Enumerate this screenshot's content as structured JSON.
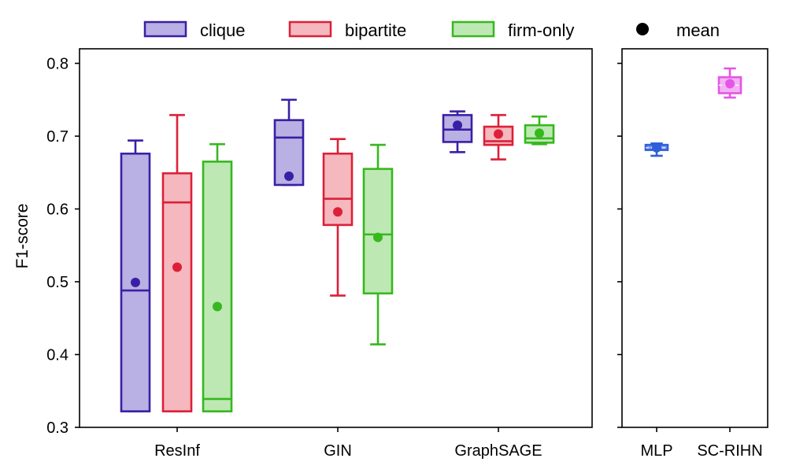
{
  "chart_data": {
    "type": "box",
    "ylabel": "F1-score",
    "ylim": [
      0.3,
      0.82
    ],
    "yticks": [
      0.3,
      0.4,
      0.5,
      0.6,
      0.7,
      0.8
    ],
    "ytick_labels": [
      "0.3",
      "0.4",
      "0.5",
      "0.6",
      "0.7",
      "0.8"
    ],
    "legend": {
      "placement": "top",
      "entries": [
        {
          "label": "clique",
          "stroke": "#3a1fa6",
          "fill": "#b9b0e3"
        },
        {
          "label": "bipartite",
          "stroke": "#dc2038",
          "fill": "#f4b8be"
        },
        {
          "label": "firm-only",
          "stroke": "#36b81e",
          "fill": "#bde8b3"
        },
        {
          "label": "mean",
          "marker": "dot",
          "color": "#000000"
        }
      ]
    },
    "panels": [
      {
        "name": "graph-models",
        "categories": [
          "ResInf",
          "GIN",
          "GraphSAGE"
        ],
        "groups": [
          {
            "category": "ResInf",
            "boxes": [
              {
                "series": "clique",
                "whisker_low": 0.322,
                "q1": 0.322,
                "median": 0.488,
                "q3": 0.676,
                "whisker_high": 0.694,
                "mean": 0.499
              },
              {
                "series": "bipartite",
                "whisker_low": 0.322,
                "q1": 0.322,
                "median": 0.609,
                "q3": 0.649,
                "whisker_high": 0.729,
                "mean": 0.52
              },
              {
                "series": "firm-only",
                "whisker_low": 0.322,
                "q1": 0.322,
                "median": 0.339,
                "q3": 0.665,
                "whisker_high": 0.689,
                "mean": 0.466
              }
            ]
          },
          {
            "category": "GIN",
            "boxes": [
              {
                "series": "clique",
                "whisker_low": 0.633,
                "q1": 0.633,
                "median": 0.698,
                "q3": 0.722,
                "whisker_high": 0.75,
                "mean": 0.645
              },
              {
                "series": "bipartite",
                "whisker_low": 0.481,
                "q1": 0.578,
                "median": 0.614,
                "q3": 0.676,
                "whisker_high": 0.696,
                "mean": 0.596
              },
              {
                "series": "firm-only",
                "whisker_low": 0.414,
                "q1": 0.484,
                "median": 0.565,
                "q3": 0.655,
                "whisker_high": 0.688,
                "mean": 0.561
              }
            ]
          },
          {
            "category": "GraphSAGE",
            "boxes": [
              {
                "series": "clique",
                "whisker_low": 0.678,
                "q1": 0.692,
                "median": 0.709,
                "q3": 0.729,
                "whisker_high": 0.734,
                "mean": 0.715
              },
              {
                "series": "bipartite",
                "whisker_low": 0.668,
                "q1": 0.688,
                "median": 0.693,
                "q3": 0.713,
                "whisker_high": 0.729,
                "mean": 0.703
              },
              {
                "series": "firm-only",
                "whisker_low": 0.689,
                "q1": 0.691,
                "median": 0.697,
                "q3": 0.715,
                "whisker_high": 0.727,
                "mean": 0.704
              }
            ]
          }
        ]
      },
      {
        "name": "baselines",
        "categories": [
          "MLP",
          "SC-RIHN"
        ],
        "groups": [
          {
            "category": "MLP",
            "boxes": [
              {
                "series": "MLP",
                "stroke": "#2f5ed8",
                "fill": "#7f9df0",
                "whisker_low": 0.673,
                "q1": 0.681,
                "median": 0.684,
                "q3": 0.688,
                "whisker_high": 0.69,
                "mean": 0.684
              }
            ]
          },
          {
            "category": "SC-RIHN",
            "boxes": [
              {
                "series": "SC-RIHN",
                "stroke": "#e455e6",
                "fill": "#f2b2f2",
                "whisker_low": 0.753,
                "q1": 0.759,
                "median": 0.77,
                "q3": 0.781,
                "whisker_high": 0.793,
                "mean": 0.772
              }
            ]
          }
        ]
      }
    ]
  }
}
